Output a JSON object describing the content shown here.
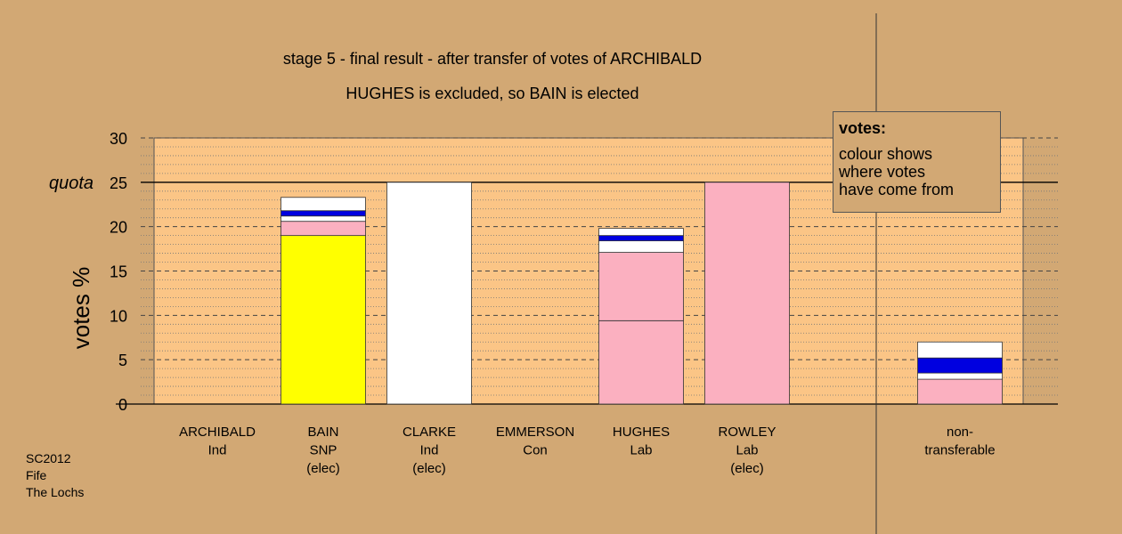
{
  "title_line1": "stage 5 - final result - after transfer of votes of ARCHIBALD",
  "title_line2": "HUGHES is excluded, so BAIN is elected",
  "legend": {
    "title": "votes:",
    "lines": [
      "colour shows",
      "where votes",
      "have come from"
    ]
  },
  "footer": [
    "SC2012",
    "Fife",
    "The Lochs"
  ],
  "colors": {
    "background": "#d2a874",
    "plot_background": "#fbc586",
    "snp": "#ffff00",
    "independent": "#ffffff",
    "labour": "#fbb0c0",
    "conservative": "#0000e0"
  },
  "chart_data": {
    "type": "bar",
    "stacked": true,
    "ylabel": "votes %",
    "ylim": [
      0,
      30
    ],
    "yticks": [
      0,
      5,
      10,
      15,
      20,
      25,
      30
    ],
    "ytick_labels": [
      "0",
      "5",
      "10",
      "15",
      "20",
      "25",
      "30"
    ],
    "quota": 25,
    "quota_label": "quota",
    "grid": "dashed major, dotted minor",
    "categories": [
      {
        "lines": [
          "ARCHIBALD",
          "Ind"
        ],
        "segments": []
      },
      {
        "lines": [
          "BAIN",
          "SNP",
          "(elec)"
        ],
        "segments": [
          {
            "from": "snp",
            "value": 19.0
          },
          {
            "from": "labour",
            "value": 1.6
          },
          {
            "from": "independent",
            "value": 0.6
          },
          {
            "from": "conservative",
            "value": 0.6
          },
          {
            "from": "independent",
            "value": 1.5
          }
        ]
      },
      {
        "lines": [
          "CLARKE",
          "Ind",
          "(elec)"
        ],
        "segments": [
          {
            "from": "independent",
            "value": 25.0
          }
        ]
      },
      {
        "lines": [
          "EMMERSON",
          "Con"
        ],
        "segments": []
      },
      {
        "lines": [
          "HUGHES",
          "Lab"
        ],
        "segments": [
          {
            "from": "labour",
            "value": 9.4
          },
          {
            "from": "labour",
            "value": 7.7
          },
          {
            "from": "independent",
            "value": 1.3
          },
          {
            "from": "conservative",
            "value": 0.6
          },
          {
            "from": "independent",
            "value": 0.8
          }
        ]
      },
      {
        "lines": [
          "ROWLEY",
          "Lab",
          "(elec)"
        ],
        "segments": [
          {
            "from": "labour",
            "value": 25.0
          }
        ]
      },
      {
        "lines": [
          "non-",
          "transferable"
        ],
        "segments": [
          {
            "from": "labour",
            "value": 2.8
          },
          {
            "from": "independent",
            "value": 0.7
          },
          {
            "from": "conservative",
            "value": 1.7
          },
          {
            "from": "independent",
            "value": 1.8
          }
        ]
      }
    ]
  }
}
